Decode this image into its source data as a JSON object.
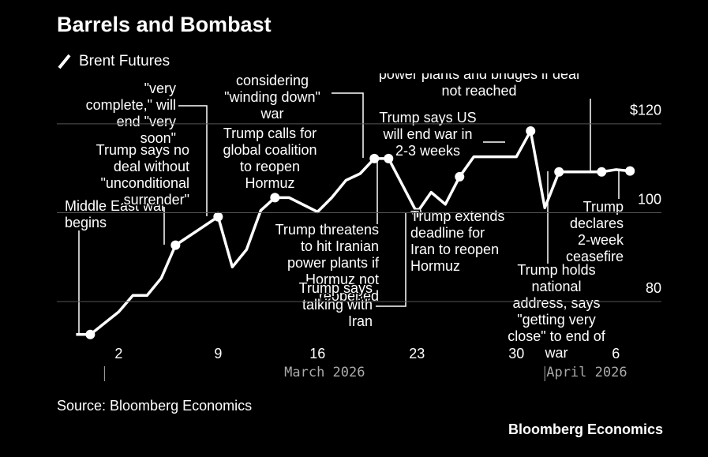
{
  "chart_data": {
    "type": "line",
    "title": "Barrels and Bombast",
    "source": "Source: Bloomberg Economics",
    "brand": "Bloomberg Economics",
    "x": [
      -1,
      0,
      2,
      3,
      4,
      5,
      6,
      9,
      10,
      11,
      12,
      13,
      14,
      16,
      17,
      18,
      19,
      20,
      21,
      23,
      24,
      25,
      26,
      27,
      28,
      30,
      31,
      32,
      33,
      36,
      37,
      38
    ],
    "series": [
      {
        "name": "Brent Futures",
        "color": "#ffffff",
        "values": [
          72.6,
          72.6,
          77.7,
          81.4,
          81.4,
          85.3,
          92.7,
          99.1,
          87.8,
          91.7,
          100.5,
          103.4,
          103.4,
          100.2,
          103.4,
          107.3,
          108.8,
          112.2,
          112.2,
          100,
          104.6,
          101.9,
          108.1,
          112.6,
          112.6,
          112.6,
          118.4,
          101.1,
          109.2,
          109.2,
          109.7,
          109.4
        ]
      }
    ],
    "xlim": [
      -1.8,
      38.6
    ],
    "xticks": [
      2,
      9,
      16,
      23,
      30,
      {
        "value": 37,
        "label": "6"
      }
    ],
    "months": [
      {
        "value": 1,
        "label": "March 2026"
      },
      {
        "value": 32,
        "label": "April 2026"
      }
    ],
    "ylim": [
      71.5,
      131
    ],
    "yticks": [
      80,
      100,
      {
        "value": 120,
        "label": "$120"
      }
    ],
    "grid": true,
    "annotations": [
      {
        "x": 0,
        "lines": [
          "Middle East war",
          "begins"
        ]
      },
      {
        "x": 6,
        "lines": [
          "Trump says no",
          "deal without",
          "\"unconditional",
          "surrender\""
        ]
      },
      {
        "x": 9,
        "lines": [
          "\"very",
          "complete,\" will",
          "end \"very",
          "soon\""
        ]
      },
      {
        "x": 13,
        "lines": [
          "Trump calls for",
          "global coalition",
          "to reopen",
          "Hormuz"
        ]
      },
      {
        "x": 20,
        "lines": [
          "considering",
          "\"winding down\"",
          "war"
        ]
      },
      {
        "x": 21,
        "lines": [
          "Trump threatens",
          "to hit Iranian",
          "power plants if",
          "Hormuz not",
          "reopened"
        ]
      },
      {
        "x": 23,
        "lines": [
          "Trump says",
          "talking with",
          "Iran"
        ]
      },
      {
        "x": 26,
        "lines": [
          "Trump extends",
          "deadline for",
          "Iran to reopen",
          "Hormuz"
        ]
      },
      {
        "x": 31,
        "lines": [
          "Trump says US",
          "will end war in",
          "2-3 weeks"
        ]
      },
      {
        "x": 36,
        "lines": [
          "power plants and bridges if deal",
          "not reached"
        ]
      },
      {
        "x": 33,
        "lines": [
          "Trump holds",
          "national",
          "address, says",
          "\"getting very",
          "close\" to end of",
          "war"
        ]
      },
      {
        "x": 38,
        "lines": [
          "Trump",
          "declares",
          "2-week",
          "ceasefire"
        ]
      }
    ]
  }
}
